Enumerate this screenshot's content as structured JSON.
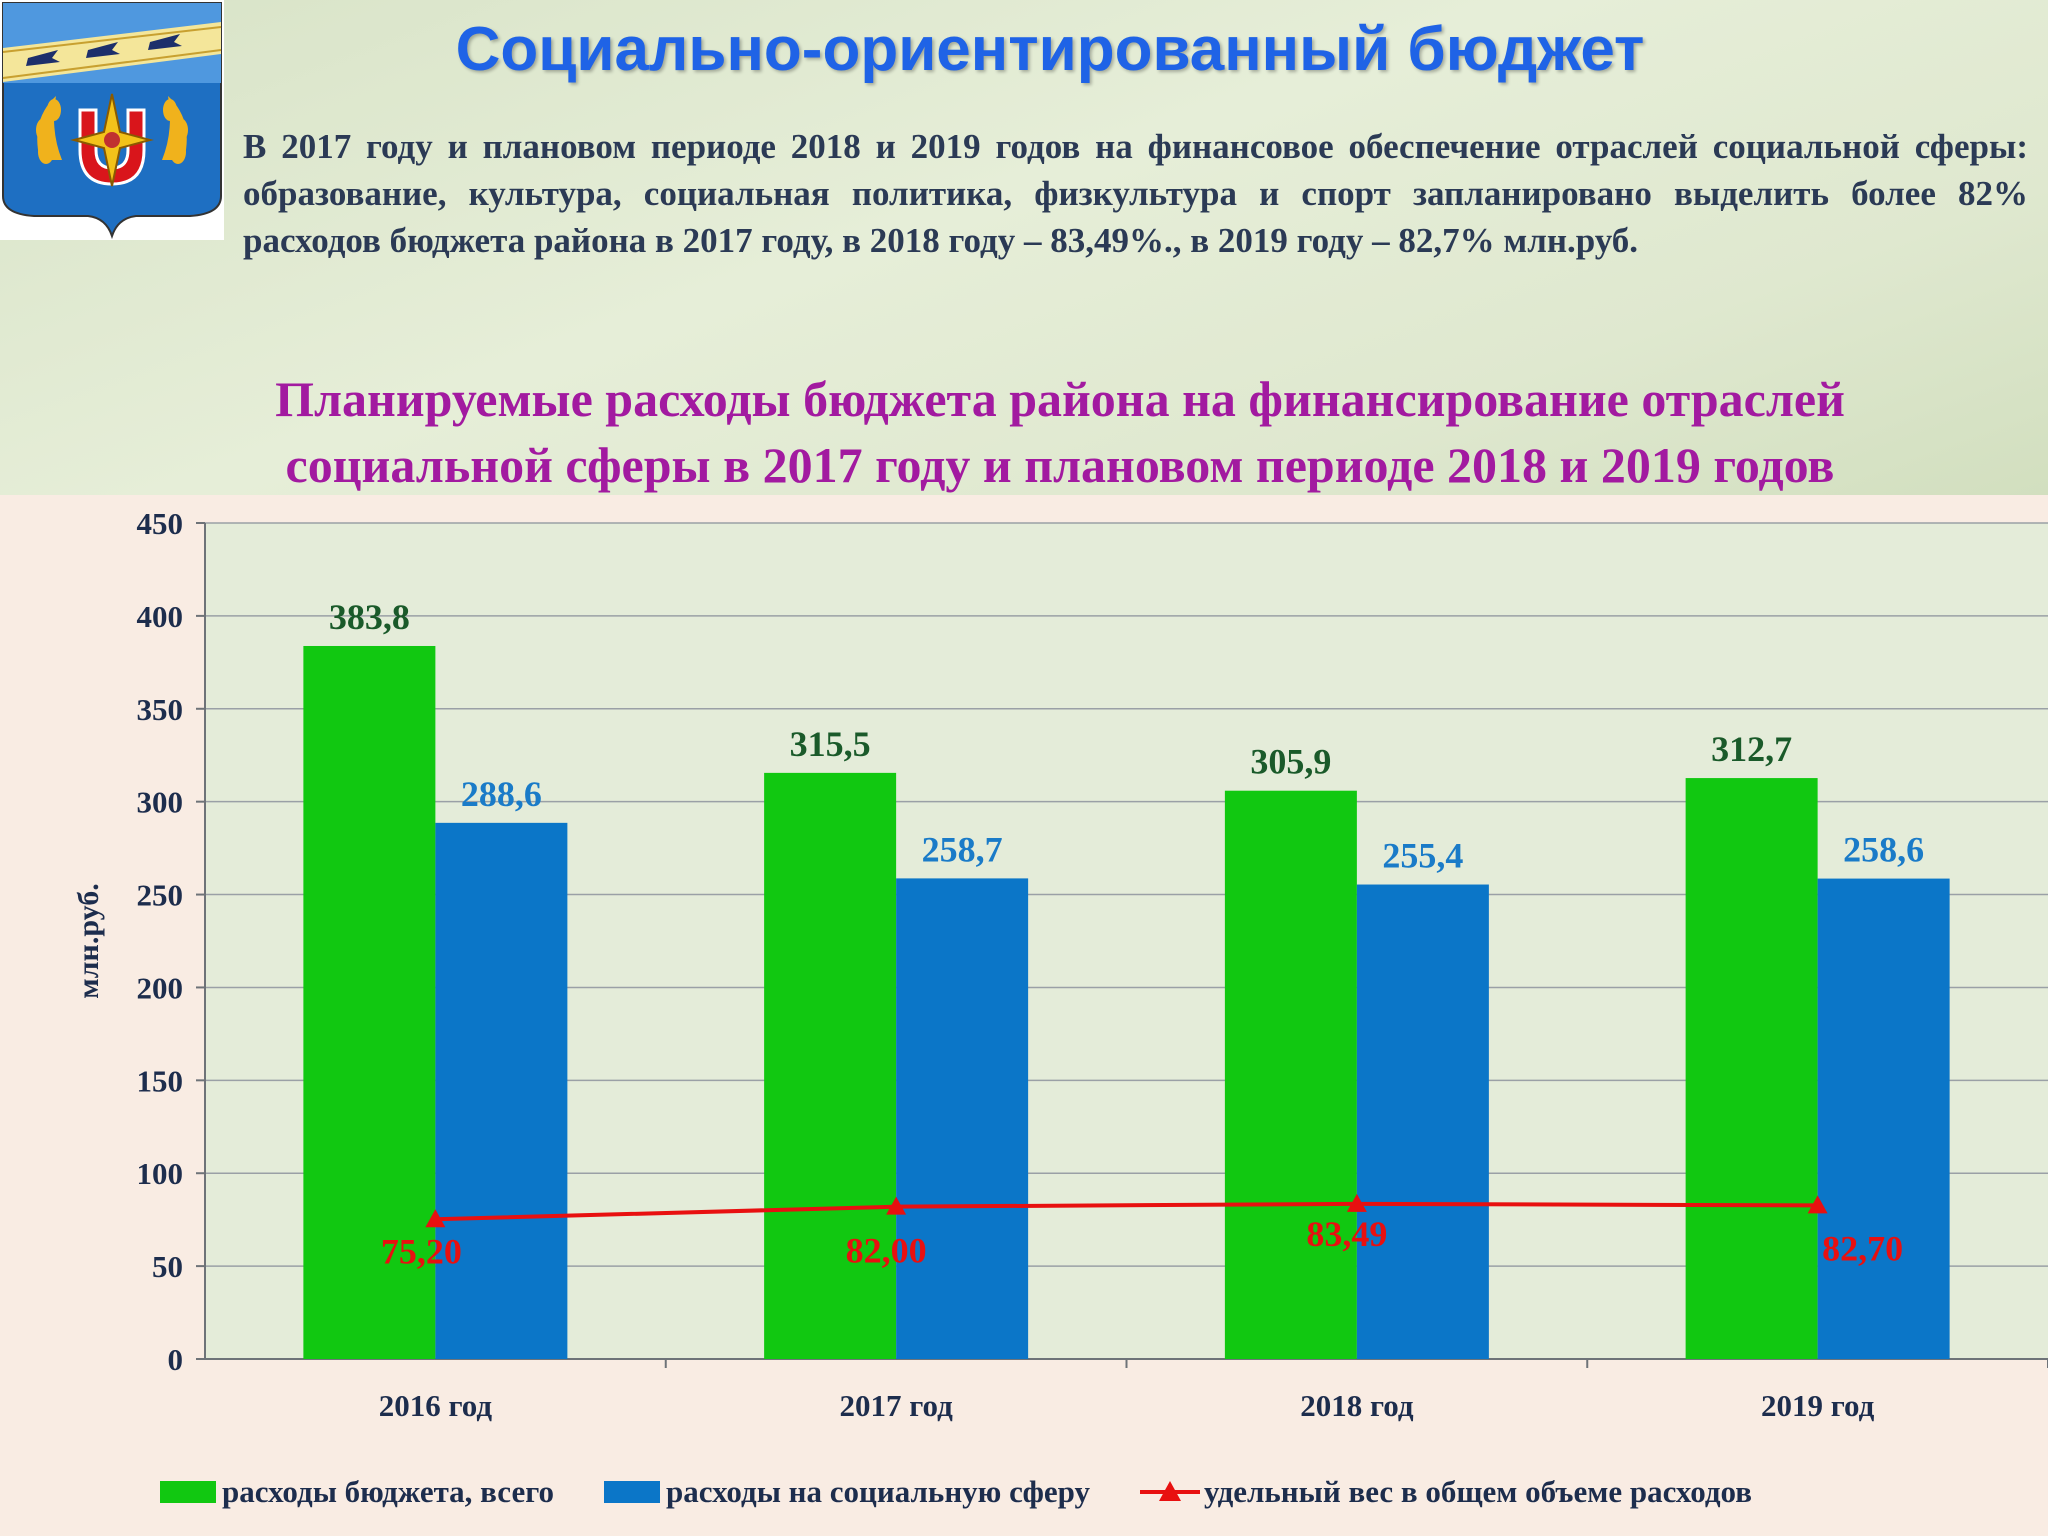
{
  "header": {
    "title": "Социально-ориентированный бюджет",
    "intro": "В 2017 году и плановом периоде 2018 и 2019 годов на финансовое обеспечение отраслей социальной сферы: образование, культура, социальная политика, физкультура и спорт запланировано выделить более 82% расходов бюджета района в 2017 году, в 2018 году – 83,49%., в 2019 году – 82,7% млн.руб."
  },
  "colors": {
    "total": "#11c811",
    "social": "#0b76c8",
    "share": "#e81010",
    "total_label": "#1a5a2a",
    "social_label": "#1a7bc8",
    "share_label": "#e81010"
  },
  "chart_data": {
    "type": "bar",
    "title": "Планируемые расходы бюджета района на финансирование отраслей социальной сферы в 2017 году и плановом периоде 2018 и 2019 годов",
    "ylabel": "млн.руб.",
    "xlabel": "",
    "ylim": [
      0,
      450
    ],
    "yticks": [
      0,
      50,
      100,
      150,
      200,
      250,
      300,
      350,
      400,
      450
    ],
    "grid": true,
    "legend_position": "bottom",
    "categories": [
      "2016 год",
      "2017 год",
      "2018 год",
      "2019 год"
    ],
    "series": [
      {
        "name": "расходы бюджета, всего",
        "type": "bar",
        "values": [
          383.8,
          315.5,
          305.9,
          312.7
        ],
        "labels": [
          "383,8",
          "315,5",
          "305,9",
          "312,7"
        ]
      },
      {
        "name": "расходы на социальную сферу",
        "type": "bar",
        "values": [
          288.6,
          258.7,
          255.4,
          258.6
        ],
        "labels": [
          "288,6",
          "258,7",
          "255,4",
          "258,6"
        ]
      },
      {
        "name": "удельный вес в общем объеме расходов",
        "type": "line",
        "values": [
          75.2,
          82.0,
          83.49,
          82.7
        ],
        "labels": [
          "75,20",
          "82,00",
          "83,49",
          "82,70"
        ]
      }
    ]
  }
}
